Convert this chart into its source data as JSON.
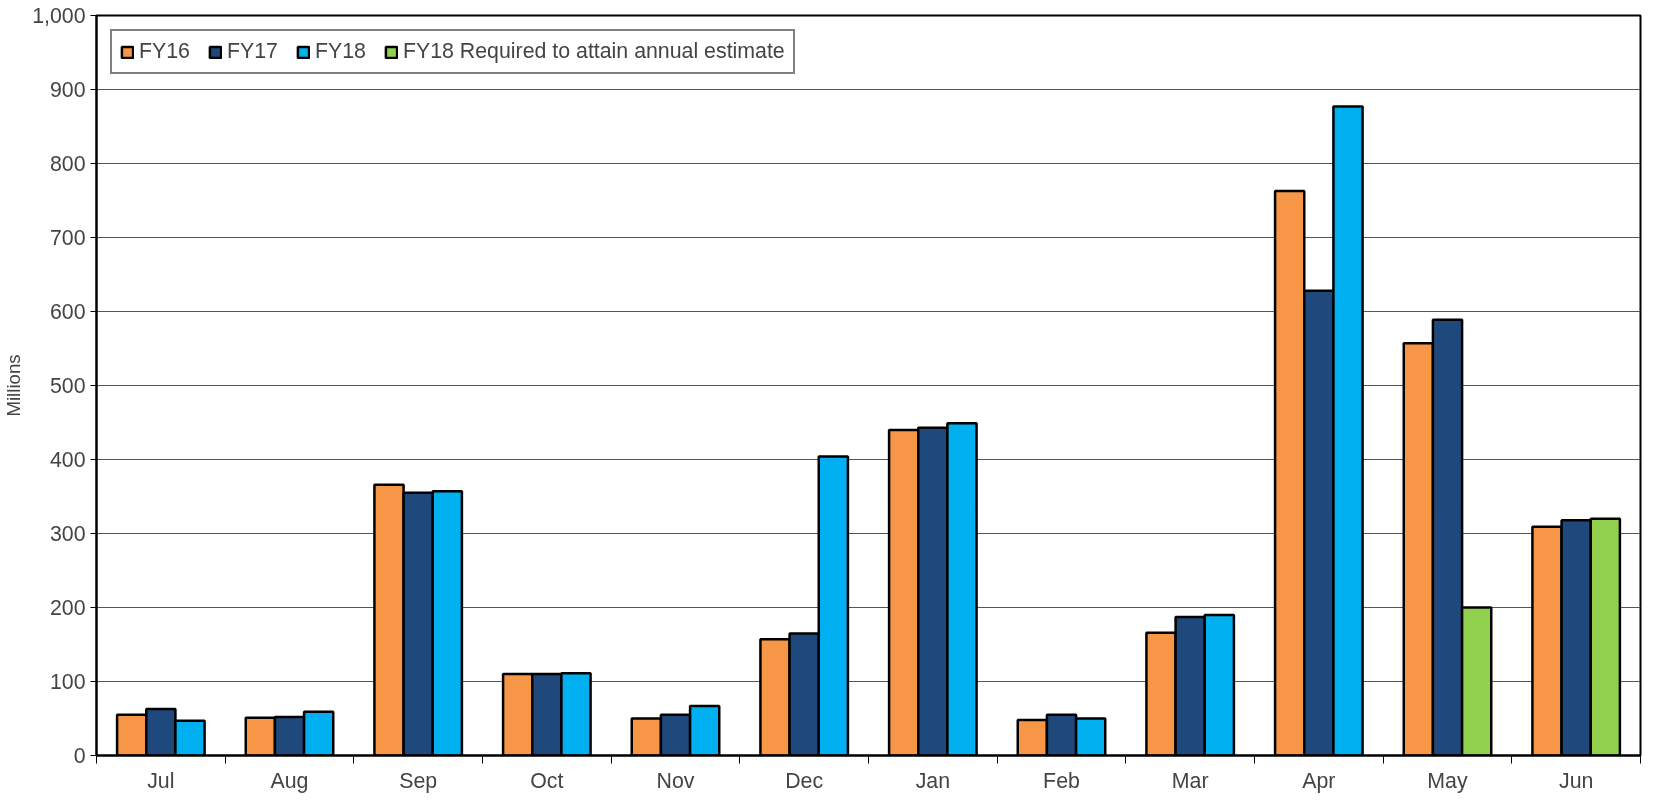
{
  "chart_data": {
    "type": "bar",
    "ylabel": "Millions",
    "categories": [
      "Jul",
      "Aug",
      "Sep",
      "Oct",
      "Nov",
      "Dec",
      "Jan",
      "Feb",
      "Mar",
      "Apr",
      "May",
      "Jun"
    ],
    "series": [
      {
        "name": "FY16",
        "color": "#f79646",
        "values": [
          55,
          51,
          366,
          110,
          50,
          157,
          440,
          48,
          166,
          763,
          557,
          309
        ]
      },
      {
        "name": "FY17",
        "color": "#1f497d",
        "values": [
          63,
          52,
          355,
          110,
          55,
          165,
          443,
          55,
          187,
          628,
          589,
          318
        ]
      },
      {
        "name": "FY18",
        "color": "#00b0f0",
        "values": [
          47,
          59,
          357,
          111,
          67,
          404,
          449,
          50,
          190,
          877,
          null,
          null
        ]
      },
      {
        "name": "FY18 Required to attain annual estimate",
        "color": "#92d050",
        "values": [
          null,
          null,
          null,
          null,
          null,
          null,
          null,
          null,
          null,
          null,
          200,
          320
        ]
      }
    ],
    "ylim": [
      0,
      1000
    ],
    "yticks": [
      0,
      100,
      200,
      300,
      400,
      500,
      600,
      700,
      800,
      900,
      {
        "value": 1000,
        "label": "1,000"
      }
    ],
    "grid": "y",
    "legend": "top left"
  }
}
